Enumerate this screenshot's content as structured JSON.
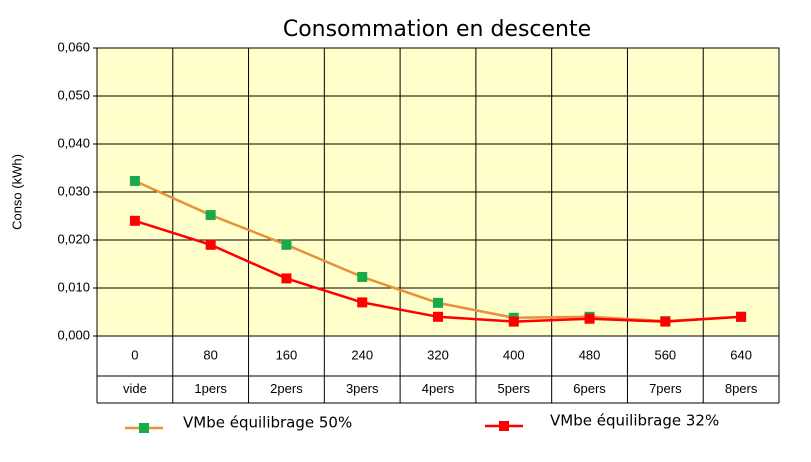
{
  "chart_data": {
    "type": "line",
    "title": "Consommation en descente",
    "y_label": "Conso (kWh)",
    "categories": [
      "0",
      "80",
      "160",
      "240",
      "320",
      "400",
      "480",
      "560",
      "640"
    ],
    "sub_categories": [
      "vide",
      "1pers",
      "2pers",
      "3pers",
      "4pers",
      "5pers",
      "6pers",
      "7pers",
      "8pers"
    ],
    "series": [
      {
        "name": "VMbe équilibrage 50%",
        "color": "#e8913a",
        "marker_color": "#1aaa4a",
        "values": [
          0.0323,
          0.0252,
          0.019,
          0.0123,
          0.0069,
          0.0038,
          0.004,
          0.0031,
          0.004
        ]
      },
      {
        "name": "VMbe équilibrage 32%",
        "color": "#ff0000",
        "marker_color": "#ff0000",
        "values": [
          0.024,
          0.019,
          0.012,
          0.007,
          0.004,
          0.003,
          0.0036,
          0.003,
          0.004
        ]
      }
    ],
    "ylim": [
      0,
      0.06
    ],
    "yticks": [
      {
        "value": 0,
        "label": "0,000"
      },
      {
        "value": 0.01,
        "label": "0,010"
      },
      {
        "value": 0.02,
        "label": "0,020"
      },
      {
        "value": 0.03,
        "label": "0,030"
      },
      {
        "value": 0.04,
        "label": "0,040"
      },
      {
        "value": 0.05,
        "label": "0,050"
      },
      {
        "value": 0.06,
        "label": "0,060"
      }
    ],
    "grid": true,
    "plot_background": "#ffffcc",
    "legend_position": "bottom"
  }
}
